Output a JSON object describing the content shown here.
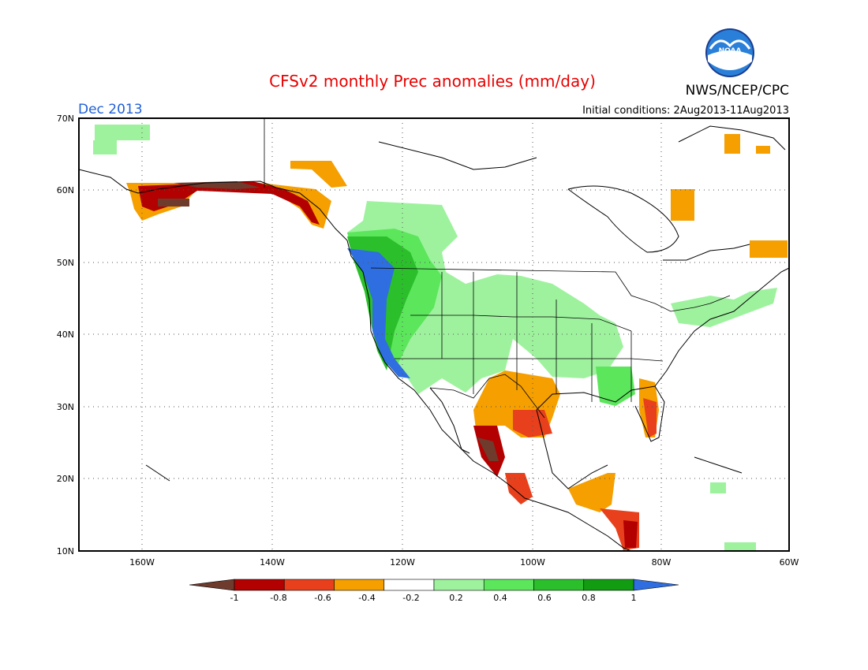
{
  "header": {
    "title": "CFSv2 monthly Prec anomalies (mm/day)",
    "month": "Dec 2013",
    "initial_conditions": "Initial conditions: 2Aug2013-11Aug2013",
    "agency": "NWS/NCEP/CPC",
    "logo_text": "NOAA"
  },
  "map": {
    "lat_labels": [
      "70N",
      "60N",
      "50N",
      "40N",
      "30N",
      "20N",
      "10N"
    ],
    "lon_labels": [
      "160W",
      "140W",
      "120W",
      "100W",
      "80W",
      "60W"
    ]
  },
  "colorbar": {
    "labels": [
      "-1",
      "-0.8",
      "-0.6",
      "-0.4",
      "-0.2",
      "0.2",
      "0.4",
      "0.6",
      "0.8",
      "1"
    ],
    "colors": [
      "#6e3b2d",
      "#b30000",
      "#e8401c",
      "#f59f00",
      "#ffffff",
      "#9ef29e",
      "#5ce65c",
      "#2bbf2b",
      "#129c12",
      "#2e6ee0"
    ]
  },
  "colors": {
    "title": "#e80000",
    "month": "#1f5fd6",
    "strong_dry": "#6e3b2d",
    "dry": "#b30000",
    "mod_dry": "#e8401c",
    "light_dry": "#f59f00",
    "light_wet": "#9ef29e",
    "mod_wet": "#5ce65c",
    "wet": "#2bbf2b",
    "very_wet": "#129c12",
    "extreme_wet": "#2e6ee0"
  }
}
